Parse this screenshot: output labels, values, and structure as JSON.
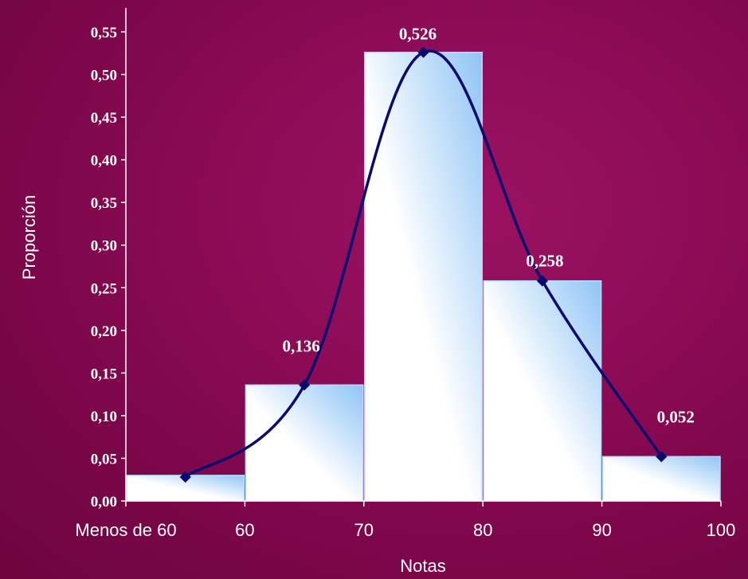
{
  "chart_data": {
    "type": "bar",
    "subtype": "histogram-with-smooth-line",
    "xlabel": "Notas",
    "ylabel": "Proporción",
    "ylim": [
      0,
      0.55
    ],
    "yticks": [
      "0,00",
      "0,05",
      "0,10",
      "0,15",
      "0,20",
      "0,25",
      "0,30",
      "0,35",
      "0,40",
      "0,45",
      "0,50",
      "0,55"
    ],
    "xlim": [
      50,
      100
    ],
    "xticks": [
      {
        "value": 50,
        "label": "Menos de 60"
      },
      {
        "value": 60,
        "label": "60"
      },
      {
        "value": 70,
        "label": "70"
      },
      {
        "value": 80,
        "label": "80"
      },
      {
        "value": 90,
        "label": "90"
      },
      {
        "value": 100,
        "label": "100"
      }
    ],
    "bins": [
      {
        "from": 50,
        "to": 60,
        "value": 0.03
      },
      {
        "from": 60,
        "to": 70,
        "value": 0.136
      },
      {
        "from": 70,
        "to": 80,
        "value": 0.526
      },
      {
        "from": 80,
        "to": 90,
        "value": 0.258
      },
      {
        "from": 90,
        "to": 100,
        "value": 0.052
      }
    ],
    "line_points": [
      {
        "x": 55,
        "y": 0.028
      },
      {
        "x": 65,
        "y": 0.136
      },
      {
        "x": 75,
        "y": 0.526
      },
      {
        "x": 85,
        "y": 0.258
      },
      {
        "x": 95,
        "y": 0.052
      }
    ],
    "data_labels": [
      {
        "x": 65,
        "y": 0.136,
        "text": "0,136"
      },
      {
        "x": 75,
        "y": 0.526,
        "text": "0,526"
      },
      {
        "x": 85,
        "y": 0.258,
        "text": "0,258"
      },
      {
        "x": 95,
        "y": 0.052,
        "text": "0,052"
      }
    ],
    "grid": false,
    "legend": "none",
    "colors": {
      "background": "#84084f",
      "bar_light": "#ffffff",
      "bar_dark": "#8fc4f5",
      "line": "#0a0a6e",
      "axis": "#ffffff",
      "text": "#ffffff"
    }
  }
}
